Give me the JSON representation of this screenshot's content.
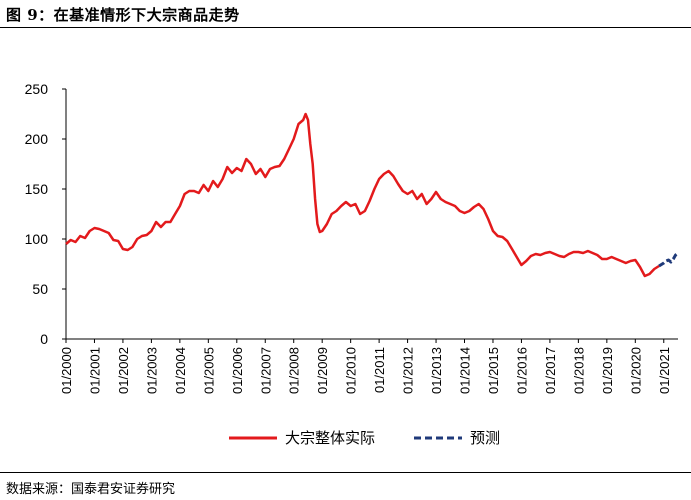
{
  "figure": {
    "title": "图 9：在基准情形下大宗商品走势",
    "source": "数据来源：国泰君安证券研究"
  },
  "chart_data": {
    "type": "line",
    "title": "",
    "xlabel": "",
    "ylabel": "",
    "ylim": [
      0,
      250
    ],
    "yticks": [
      0,
      50,
      100,
      150,
      200,
      250
    ],
    "xlim": [
      "2000-01",
      "2021-07"
    ],
    "xticks": [
      "01/2000",
      "01/2001",
      "01/2002",
      "01/2003",
      "01/2004",
      "01/2005",
      "01/2006",
      "01/2007",
      "01/2008",
      "01/2009",
      "01/2010",
      "01/2011",
      "01/2012",
      "01/2013",
      "01/2014",
      "01/2015",
      "01/2016",
      "01/2017",
      "01/2018",
      "01/2019",
      "01/2020",
      "01/2021"
    ],
    "grid": false,
    "legend_position": "bottom",
    "series": [
      {
        "name": "大宗整体实际",
        "color": "#e31a1c",
        "style": "solid",
        "points": [
          [
            "2000-01",
            95
          ],
          [
            "2000-03",
            99
          ],
          [
            "2000-05",
            97
          ],
          [
            "2000-07",
            103
          ],
          [
            "2000-09",
            101
          ],
          [
            "2000-11",
            108
          ],
          [
            "2001-01",
            111
          ],
          [
            "2001-03",
            110
          ],
          [
            "2001-05",
            108
          ],
          [
            "2001-07",
            106
          ],
          [
            "2001-09",
            99
          ],
          [
            "2001-11",
            98
          ],
          [
            "2002-01",
            90
          ],
          [
            "2002-03",
            89
          ],
          [
            "2002-05",
            92
          ],
          [
            "2002-07",
            100
          ],
          [
            "2002-09",
            103
          ],
          [
            "2002-11",
            104
          ],
          [
            "2003-01",
            108
          ],
          [
            "2003-03",
            117
          ],
          [
            "2003-05",
            112
          ],
          [
            "2003-07",
            117
          ],
          [
            "2003-09",
            117
          ],
          [
            "2003-11",
            125
          ],
          [
            "2004-01",
            133
          ],
          [
            "2004-03",
            145
          ],
          [
            "2004-05",
            148
          ],
          [
            "2004-07",
            148
          ],
          [
            "2004-09",
            146
          ],
          [
            "2004-11",
            154
          ],
          [
            "2005-01",
            148
          ],
          [
            "2005-03",
            158
          ],
          [
            "2005-05",
            152
          ],
          [
            "2005-07",
            160
          ],
          [
            "2005-09",
            172
          ],
          [
            "2005-11",
            166
          ],
          [
            "2006-01",
            171
          ],
          [
            "2006-03",
            168
          ],
          [
            "2006-05",
            180
          ],
          [
            "2006-07",
            175
          ],
          [
            "2006-09",
            165
          ],
          [
            "2006-11",
            170
          ],
          [
            "2007-01",
            162
          ],
          [
            "2007-03",
            170
          ],
          [
            "2007-05",
            172
          ],
          [
            "2007-07",
            173
          ],
          [
            "2007-09",
            180
          ],
          [
            "2007-11",
            190
          ],
          [
            "2008-01",
            200
          ],
          [
            "2008-03",
            215
          ],
          [
            "2008-05",
            219
          ],
          [
            "2008-06",
            225
          ],
          [
            "2008-07",
            219
          ],
          [
            "2008-08",
            195
          ],
          [
            "2008-09",
            175
          ],
          [
            "2008-10",
            140
          ],
          [
            "2008-11",
            115
          ],
          [
            "2008-12",
            107
          ],
          [
            "2009-01",
            108
          ],
          [
            "2009-03",
            115
          ],
          [
            "2009-05",
            125
          ],
          [
            "2009-07",
            128
          ],
          [
            "2009-09",
            133
          ],
          [
            "2009-11",
            137
          ],
          [
            "2010-01",
            133
          ],
          [
            "2010-03",
            135
          ],
          [
            "2010-05",
            125
          ],
          [
            "2010-07",
            128
          ],
          [
            "2010-09",
            138
          ],
          [
            "2010-11",
            150
          ],
          [
            "2011-01",
            160
          ],
          [
            "2011-03",
            165
          ],
          [
            "2011-05",
            168
          ],
          [
            "2011-07",
            163
          ],
          [
            "2011-09",
            155
          ],
          [
            "2011-11",
            148
          ],
          [
            "2012-01",
            145
          ],
          [
            "2012-03",
            148
          ],
          [
            "2012-05",
            140
          ],
          [
            "2012-07",
            145
          ],
          [
            "2012-09",
            135
          ],
          [
            "2012-11",
            140
          ],
          [
            "2013-01",
            147
          ],
          [
            "2013-03",
            140
          ],
          [
            "2013-05",
            137
          ],
          [
            "2013-07",
            135
          ],
          [
            "2013-09",
            133
          ],
          [
            "2013-11",
            128
          ],
          [
            "2014-01",
            126
          ],
          [
            "2014-03",
            128
          ],
          [
            "2014-05",
            132
          ],
          [
            "2014-07",
            135
          ],
          [
            "2014-09",
            130
          ],
          [
            "2014-11",
            120
          ],
          [
            "2015-01",
            108
          ],
          [
            "2015-03",
            103
          ],
          [
            "2015-05",
            102
          ],
          [
            "2015-07",
            98
          ],
          [
            "2015-09",
            90
          ],
          [
            "2015-11",
            82
          ],
          [
            "2016-01",
            74
          ],
          [
            "2016-03",
            78
          ],
          [
            "2016-05",
            83
          ],
          [
            "2016-07",
            85
          ],
          [
            "2016-09",
            84
          ],
          [
            "2016-11",
            86
          ],
          [
            "2017-01",
            87
          ],
          [
            "2017-03",
            85
          ],
          [
            "2017-05",
            83
          ],
          [
            "2017-07",
            82
          ],
          [
            "2017-09",
            85
          ],
          [
            "2017-11",
            87
          ],
          [
            "2018-01",
            87
          ],
          [
            "2018-03",
            86
          ],
          [
            "2018-05",
            88
          ],
          [
            "2018-07",
            86
          ],
          [
            "2018-09",
            84
          ],
          [
            "2018-11",
            80
          ],
          [
            "2019-01",
            80
          ],
          [
            "2019-03",
            82
          ],
          [
            "2019-05",
            80
          ],
          [
            "2019-07",
            78
          ],
          [
            "2019-09",
            76
          ],
          [
            "2019-11",
            78
          ],
          [
            "2020-01",
            79
          ],
          [
            "2020-03",
            72
          ],
          [
            "2020-05",
            63
          ],
          [
            "2020-07",
            65
          ],
          [
            "2020-09",
            70
          ],
          [
            "2020-11",
            73
          ]
        ]
      },
      {
        "name": "预测",
        "color": "#1f3a7a",
        "style": "dashed",
        "points": [
          [
            "2020-11",
            73
          ],
          [
            "2021-01",
            76
          ],
          [
            "2021-02",
            78
          ],
          [
            "2021-03",
            79
          ],
          [
            "2021-04",
            77
          ],
          [
            "2021-05",
            80
          ],
          [
            "2021-06",
            84
          ],
          [
            "2021-07",
            86
          ]
        ]
      }
    ]
  }
}
